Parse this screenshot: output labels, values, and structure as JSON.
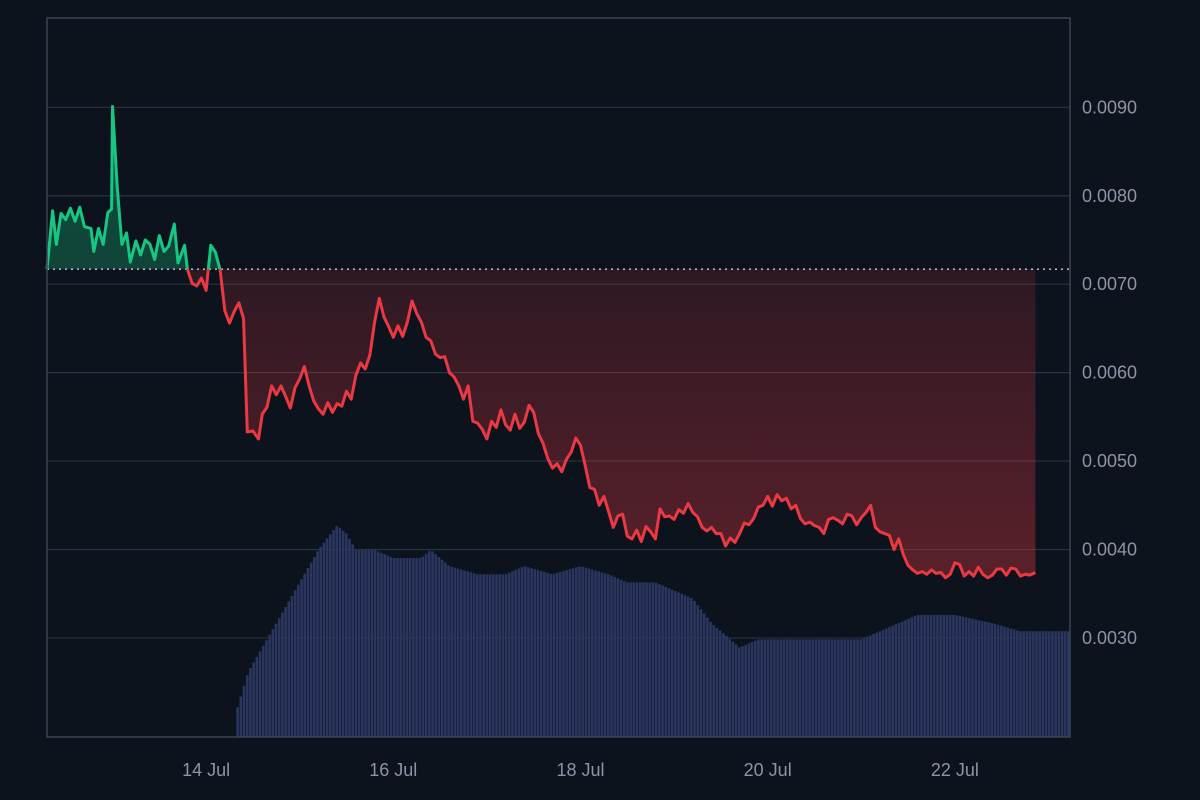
{
  "chart_data": {
    "type": "area",
    "title": "",
    "xlabel": "",
    "ylabel": "",
    "y_axis_position": "right",
    "grid": true,
    "x_ticks": [
      "14 Jul",
      "16 Jul",
      "18 Jul",
      "20 Jul",
      "22 Jul"
    ],
    "x_tick_days": [
      14,
      16,
      18,
      20,
      22
    ],
    "x_range_days": [
      12.3,
      23.23
    ],
    "y_ticks": [
      "0.0030",
      "0.0040",
      "0.0050",
      "0.0060",
      "0.0070",
      "0.0080",
      "0.0090"
    ],
    "y_tick_values": [
      0.003,
      0.004,
      0.005,
      0.006,
      0.007,
      0.008,
      0.009
    ],
    "ylim": [
      0.00188,
      0.01001
    ],
    "baseline_price": 0.00717,
    "colors": {
      "above_baseline": "#16c784",
      "below_baseline": "#ea3943",
      "volume": "#2b3660",
      "grid": "#2a3340",
      "background": "#0d131d"
    },
    "price_series": {
      "name": "",
      "points": [
        [
          12.3,
          0.00717
        ],
        [
          12.36,
          0.00783
        ],
        [
          12.4,
          0.00745
        ],
        [
          12.45,
          0.0078
        ],
        [
          12.5,
          0.00773
        ],
        [
          12.55,
          0.00786
        ],
        [
          12.6,
          0.00771
        ],
        [
          12.65,
          0.00787
        ],
        [
          12.7,
          0.00765
        ],
        [
          12.77,
          0.00763
        ],
        [
          12.8,
          0.00737
        ],
        [
          12.85,
          0.00763
        ],
        [
          12.9,
          0.00745
        ],
        [
          12.95,
          0.00781
        ],
        [
          12.99,
          0.00785
        ],
        [
          13.0,
          0.00901
        ],
        [
          13.05,
          0.0081
        ],
        [
          13.1,
          0.00745
        ],
        [
          13.15,
          0.00758
        ],
        [
          13.19,
          0.00725
        ],
        [
          13.25,
          0.00749
        ],
        [
          13.3,
          0.00733
        ],
        [
          13.35,
          0.0075
        ],
        [
          13.4,
          0.00745
        ],
        [
          13.45,
          0.00728
        ],
        [
          13.5,
          0.00755
        ],
        [
          13.55,
          0.00737
        ],
        [
          13.6,
          0.00743
        ],
        [
          13.66,
          0.00768
        ],
        [
          13.7,
          0.00724
        ],
        [
          13.77,
          0.00744
        ],
        [
          13.8,
          0.00717
        ],
        [
          13.85,
          0.00701
        ],
        [
          13.9,
          0.00698
        ],
        [
          13.95,
          0.00707
        ],
        [
          14.0,
          0.00693
        ],
        [
          14.05,
          0.00744
        ],
        [
          14.1,
          0.00736
        ],
        [
          14.15,
          0.00716
        ],
        [
          14.2,
          0.0067
        ],
        [
          14.25,
          0.00656
        ],
        [
          14.3,
          0.00669
        ],
        [
          14.35,
          0.00679
        ],
        [
          14.4,
          0.00661
        ],
        [
          14.44,
          0.00533
        ],
        [
          14.5,
          0.00534
        ],
        [
          14.56,
          0.00525
        ],
        [
          14.6,
          0.00553
        ],
        [
          14.65,
          0.00561
        ],
        [
          14.7,
          0.00585
        ],
        [
          14.75,
          0.00575
        ],
        [
          14.8,
          0.00585
        ],
        [
          14.85,
          0.00573
        ],
        [
          14.9,
          0.0056
        ],
        [
          14.95,
          0.00583
        ],
        [
          15.0,
          0.00593
        ],
        [
          15.05,
          0.00607
        ],
        [
          15.1,
          0.00585
        ],
        [
          15.15,
          0.00568
        ],
        [
          15.2,
          0.00559
        ],
        [
          15.25,
          0.00553
        ],
        [
          15.3,
          0.00566
        ],
        [
          15.35,
          0.00555
        ],
        [
          15.4,
          0.00565
        ],
        [
          15.45,
          0.00562
        ],
        [
          15.5,
          0.00579
        ],
        [
          15.55,
          0.0057
        ],
        [
          15.6,
          0.00597
        ],
        [
          15.65,
          0.00611
        ],
        [
          15.7,
          0.00604
        ],
        [
          15.75,
          0.0062
        ],
        [
          15.8,
          0.00657
        ],
        [
          15.85,
          0.00684
        ],
        [
          15.9,
          0.00663
        ],
        [
          15.95,
          0.00652
        ],
        [
          16.0,
          0.0064
        ],
        [
          16.05,
          0.00653
        ],
        [
          16.1,
          0.00641
        ],
        [
          16.15,
          0.00657
        ],
        [
          16.2,
          0.00681
        ],
        [
          16.25,
          0.00667
        ],
        [
          16.3,
          0.00657
        ],
        [
          16.35,
          0.0064
        ],
        [
          16.4,
          0.00636
        ],
        [
          16.45,
          0.00621
        ],
        [
          16.5,
          0.00617
        ],
        [
          16.55,
          0.00618
        ],
        [
          16.6,
          0.006
        ],
        [
          16.65,
          0.00595
        ],
        [
          16.7,
          0.00585
        ],
        [
          16.75,
          0.0057
        ],
        [
          16.8,
          0.00585
        ],
        [
          16.85,
          0.00545
        ],
        [
          16.9,
          0.00543
        ],
        [
          16.95,
          0.00536
        ],
        [
          17.0,
          0.00525
        ],
        [
          17.05,
          0.00545
        ],
        [
          17.1,
          0.00538
        ],
        [
          17.15,
          0.00558
        ],
        [
          17.2,
          0.00541
        ],
        [
          17.25,
          0.00535
        ],
        [
          17.3,
          0.00553
        ],
        [
          17.35,
          0.00537
        ],
        [
          17.4,
          0.00544
        ],
        [
          17.45,
          0.00563
        ],
        [
          17.5,
          0.00555
        ],
        [
          17.55,
          0.00531
        ],
        [
          17.6,
          0.0052
        ],
        [
          17.65,
          0.00503
        ],
        [
          17.7,
          0.00492
        ],
        [
          17.75,
          0.00497
        ],
        [
          17.8,
          0.00488
        ],
        [
          17.85,
          0.00502
        ],
        [
          17.9,
          0.0051
        ],
        [
          17.95,
          0.00526
        ],
        [
          18.0,
          0.00518
        ],
        [
          18.05,
          0.00495
        ],
        [
          18.1,
          0.0047
        ],
        [
          18.15,
          0.00468
        ],
        [
          18.2,
          0.0045
        ],
        [
          18.25,
          0.0046
        ],
        [
          18.3,
          0.00443
        ],
        [
          18.35,
          0.00425
        ],
        [
          18.4,
          0.00438
        ],
        [
          18.45,
          0.0044
        ],
        [
          18.5,
          0.00415
        ],
        [
          18.55,
          0.00412
        ],
        [
          18.6,
          0.00422
        ],
        [
          18.65,
          0.00409
        ],
        [
          18.7,
          0.00426
        ],
        [
          18.75,
          0.0042
        ],
        [
          18.8,
          0.00412
        ],
        [
          18.85,
          0.00446
        ],
        [
          18.9,
          0.00437
        ],
        [
          18.95,
          0.00438
        ],
        [
          19.0,
          0.00434
        ],
        [
          19.05,
          0.00445
        ],
        [
          19.1,
          0.00441
        ],
        [
          19.15,
          0.00452
        ],
        [
          19.2,
          0.00442
        ],
        [
          19.25,
          0.00437
        ],
        [
          19.3,
          0.00425
        ],
        [
          19.35,
          0.00421
        ],
        [
          19.4,
          0.00425
        ],
        [
          19.45,
          0.00418
        ],
        [
          19.5,
          0.00418
        ],
        [
          19.55,
          0.00404
        ],
        [
          19.6,
          0.00413
        ],
        [
          19.65,
          0.00408
        ],
        [
          19.7,
          0.00418
        ],
        [
          19.75,
          0.0043
        ],
        [
          19.8,
          0.00428
        ],
        [
          19.85,
          0.00435
        ],
        [
          19.9,
          0.00448
        ],
        [
          19.95,
          0.0045
        ],
        [
          20.0,
          0.0046
        ],
        [
          20.05,
          0.00449
        ],
        [
          20.1,
          0.00462
        ],
        [
          20.15,
          0.00455
        ],
        [
          20.2,
          0.00458
        ],
        [
          20.25,
          0.00446
        ],
        [
          20.3,
          0.0045
        ],
        [
          20.35,
          0.00435
        ],
        [
          20.4,
          0.00429
        ],
        [
          20.45,
          0.00431
        ],
        [
          20.5,
          0.00427
        ],
        [
          20.55,
          0.00425
        ],
        [
          20.6,
          0.00418
        ],
        [
          20.65,
          0.00434
        ],
        [
          20.7,
          0.00436
        ],
        [
          20.75,
          0.00433
        ],
        [
          20.8,
          0.00429
        ],
        [
          20.85,
          0.0044
        ],
        [
          20.9,
          0.00438
        ],
        [
          20.95,
          0.00428
        ],
        [
          21.0,
          0.00436
        ],
        [
          21.05,
          0.00442
        ],
        [
          21.1,
          0.0045
        ],
        [
          21.15,
          0.00425
        ],
        [
          21.2,
          0.0042
        ],
        [
          21.25,
          0.00418
        ],
        [
          21.3,
          0.00416
        ],
        [
          21.35,
          0.004
        ],
        [
          21.4,
          0.00412
        ],
        [
          21.45,
          0.00394
        ],
        [
          21.5,
          0.00382
        ],
        [
          21.55,
          0.00377
        ],
        [
          21.6,
          0.00373
        ],
        [
          21.65,
          0.00375
        ],
        [
          21.7,
          0.00372
        ],
        [
          21.75,
          0.00377
        ],
        [
          21.8,
          0.00373
        ],
        [
          21.85,
          0.00374
        ],
        [
          21.9,
          0.00368
        ],
        [
          21.95,
          0.00372
        ],
        [
          22.0,
          0.00385
        ],
        [
          22.05,
          0.00383
        ],
        [
          22.1,
          0.0037
        ],
        [
          22.15,
          0.00375
        ],
        [
          22.2,
          0.0037
        ],
        [
          22.25,
          0.0038
        ],
        [
          22.3,
          0.00372
        ],
        [
          22.35,
          0.00368
        ],
        [
          22.4,
          0.00371
        ],
        [
          22.45,
          0.00378
        ],
        [
          22.5,
          0.00378
        ],
        [
          22.55,
          0.00371
        ],
        [
          22.6,
          0.00379
        ],
        [
          22.65,
          0.00378
        ],
        [
          22.7,
          0.0037
        ],
        [
          22.75,
          0.00372
        ],
        [
          22.8,
          0.00371
        ],
        [
          22.86,
          0.00374
        ]
      ]
    },
    "volume_series": {
      "name": "",
      "start_day": 14.32,
      "end_day": 23.23,
      "profile_points": [
        [
          14.32,
          0.0003
        ],
        [
          14.45,
          0.0008
        ],
        [
          14.6,
          0.0011
        ],
        [
          14.8,
          0.0015
        ],
        [
          15.0,
          0.0019
        ],
        [
          15.2,
          0.0023
        ],
        [
          15.4,
          0.0026
        ],
        [
          15.5,
          0.0025
        ],
        [
          15.6,
          0.0023
        ],
        [
          15.8,
          0.0023
        ],
        [
          16.0,
          0.0022
        ],
        [
          16.3,
          0.0022
        ],
        [
          16.4,
          0.0023
        ],
        [
          16.6,
          0.0021
        ],
        [
          16.9,
          0.002
        ],
        [
          17.2,
          0.002
        ],
        [
          17.4,
          0.0021
        ],
        [
          17.7,
          0.002
        ],
        [
          18.0,
          0.0021
        ],
        [
          18.3,
          0.002
        ],
        [
          18.5,
          0.0019
        ],
        [
          18.8,
          0.0019
        ],
        [
          19.0,
          0.0018
        ],
        [
          19.2,
          0.0017
        ],
        [
          19.4,
          0.0014
        ],
        [
          19.6,
          0.0012
        ],
        [
          19.7,
          0.0011
        ],
        [
          19.9,
          0.0012
        ],
        [
          20.2,
          0.0012
        ],
        [
          20.6,
          0.0012
        ],
        [
          21.0,
          0.0012
        ],
        [
          21.2,
          0.0013
        ],
        [
          21.4,
          0.0014
        ],
        [
          21.6,
          0.0015
        ],
        [
          21.8,
          0.0015
        ],
        [
          22.0,
          0.0015
        ],
        [
          22.4,
          0.0014
        ],
        [
          22.7,
          0.0013
        ],
        [
          23.0,
          0.0013
        ],
        [
          23.23,
          0.0013
        ]
      ]
    }
  }
}
